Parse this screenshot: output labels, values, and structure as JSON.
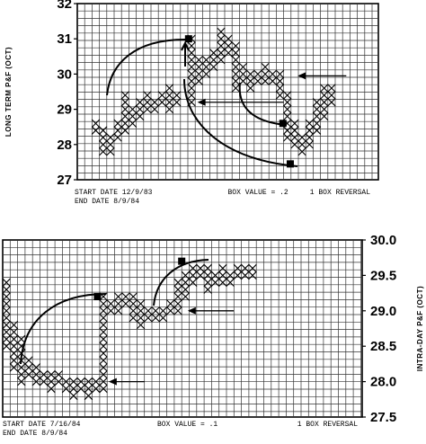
{
  "chart_data": [
    {
      "type": "point-and-figure",
      "ylabel": "LONG TERM P&F (OCT)",
      "ylim": [
        27,
        32
      ],
      "yticks": [
        "27",
        "28",
        "29",
        "30",
        "31",
        "32"
      ],
      "box_value": 0.2,
      "reversal": 1,
      "footer": {
        "start": "START DATE 12/9/83",
        "end": "END DATE 8/9/84",
        "box": "BOX VALUE = .2",
        "reversal": "1 BOX REVERSAL"
      },
      "columns": [
        {
          "col": 2,
          "low": 28.4,
          "high": 28.6
        },
        {
          "col": 3,
          "low": 27.8,
          "high": 28.4
        },
        {
          "col": 4,
          "low": 27.8,
          "high": 28.2
        },
        {
          "col": 5,
          "low": 28.2,
          "high": 28.6
        },
        {
          "col": 6,
          "low": 28.4,
          "high": 29.4
        },
        {
          "col": 7,
          "low": 28.6,
          "high": 29.0
        },
        {
          "col": 8,
          "low": 28.8,
          "high": 29.2
        },
        {
          "col": 9,
          "low": 29.0,
          "high": 29.4
        },
        {
          "col": 10,
          "low": 29.0,
          "high": 29.2
        },
        {
          "col": 11,
          "low": 29.2,
          "high": 29.4
        },
        {
          "col": 12,
          "low": 29.0,
          "high": 29.6
        },
        {
          "col": 13,
          "low": 29.2,
          "high": 29.4
        },
        {
          "col": 15,
          "low": 29.2,
          "high": 31.0
        },
        {
          "col": 16,
          "low": 29.8,
          "high": 30.4
        },
        {
          "col": 17,
          "low": 30.0,
          "high": 30.4
        },
        {
          "col": 18,
          "low": 30.2,
          "high": 30.6
        },
        {
          "col": 19,
          "low": 30.4,
          "high": 31.2
        },
        {
          "col": 20,
          "low": 30.6,
          "high": 31.0
        },
        {
          "col": 21,
          "low": 29.6,
          "high": 30.8
        },
        {
          "col": 22,
          "low": 29.8,
          "high": 30.2
        },
        {
          "col": 23,
          "low": 29.6,
          "high": 30.0
        },
        {
          "col": 24,
          "low": 29.8,
          "high": 30.0
        },
        {
          "col": 25,
          "low": 29.8,
          "high": 30.2
        },
        {
          "col": 26,
          "low": 29.8,
          "high": 30.0
        },
        {
          "col": 27,
          "low": 29.4,
          "high": 30.0
        },
        {
          "col": 28,
          "low": 28.2,
          "high": 29.4
        },
        {
          "col": 29,
          "low": 28.0,
          "high": 28.6
        },
        {
          "col": 30,
          "low": 27.8,
          "high": 28.2
        },
        {
          "col": 31,
          "low": 28.0,
          "high": 28.6
        },
        {
          "col": 32,
          "low": 28.4,
          "high": 29.2
        },
        {
          "col": 33,
          "low": 28.8,
          "high": 29.6
        },
        {
          "col": 34,
          "low": 29.2,
          "high": 29.6
        }
      ],
      "markers": [
        {
          "col": 14.6,
          "y": 31.0
        },
        {
          "col": 27.4,
          "y": 28.6
        },
        {
          "col": 28.4,
          "y": 27.45
        }
      ],
      "arrows": [
        {
          "x1": 27.5,
          "y1": 29.2,
          "x2": 15.8,
          "y2": 29.2
        },
        {
          "x1": 36.0,
          "y1": 29.95,
          "x2": 29.4,
          "y2": 29.95
        }
      ]
    },
    {
      "type": "point-and-figure",
      "ylabel": "INTRA-DAY P&F (OCT)",
      "ylim": [
        27.5,
        30.0
      ],
      "yticks": [
        "27.5",
        "28.0",
        "28.5",
        "29.0",
        "29.5",
        "30.0"
      ],
      "box_value": 0.1,
      "reversal": 1,
      "footer": {
        "start": "START DATE 7/16/84",
        "end": "END DATE 8/9/84",
        "box": "BOX VALUE = .1",
        "reversal": "1 BOX REVERSAL"
      },
      "columns": [
        {
          "col": 0,
          "low": 28.5,
          "high": 29.4
        },
        {
          "col": 1,
          "low": 28.2,
          "high": 28.8
        },
        {
          "col": 2,
          "low": 28.0,
          "high": 28.6
        },
        {
          "col": 3,
          "low": 28.1,
          "high": 28.3
        },
        {
          "col": 4,
          "low": 28.0,
          "high": 28.2
        },
        {
          "col": 5,
          "low": 28.0,
          "high": 28.1
        },
        {
          "col": 6,
          "low": 27.9,
          "high": 28.1
        },
        {
          "col": 7,
          "low": 28.0,
          "high": 28.1
        },
        {
          "col": 8,
          "low": 27.9,
          "high": 28.0
        },
        {
          "col": 9,
          "low": 27.8,
          "high": 28.0
        },
        {
          "col": 10,
          "low": 27.9,
          "high": 28.0
        },
        {
          "col": 11,
          "low": 27.8,
          "high": 28.0
        },
        {
          "col": 12,
          "low": 27.9,
          "high": 28.0
        },
        {
          "col": 13,
          "low": 27.9,
          "high": 29.2
        },
        {
          "col": 14,
          "low": 29.0,
          "high": 29.1
        },
        {
          "col": 15,
          "low": 29.0,
          "high": 29.2
        },
        {
          "col": 16,
          "low": 29.1,
          "high": 29.2
        },
        {
          "col": 17,
          "low": 28.9,
          "high": 29.2
        },
        {
          "col": 18,
          "low": 28.8,
          "high": 29.1
        },
        {
          "col": 19,
          "low": 28.9,
          "high": 29.0
        },
        {
          "col": 20,
          "low": 28.9,
          "high": 29.0
        },
        {
          "col": 21,
          "low": 28.9,
          "high": 29.0
        },
        {
          "col": 22,
          "low": 29.0,
          "high": 29.1
        },
        {
          "col": 23,
          "low": 29.0,
          "high": 29.4
        },
        {
          "col": 24,
          "low": 29.2,
          "high": 29.5
        },
        {
          "col": 25,
          "low": 29.4,
          "high": 29.6
        },
        {
          "col": 26,
          "low": 29.5,
          "high": 29.6
        },
        {
          "col": 27,
          "low": 29.3,
          "high": 29.6
        },
        {
          "col": 28,
          "low": 29.4,
          "high": 29.5
        },
        {
          "col": 29,
          "low": 29.4,
          "high": 29.6
        },
        {
          "col": 30,
          "low": 29.4,
          "high": 29.5
        },
        {
          "col": 31,
          "low": 29.5,
          "high": 29.6
        },
        {
          "col": 32,
          "low": 29.5,
          "high": 29.6
        },
        {
          "col": 33,
          "low": 29.5,
          "high": 29.6
        }
      ],
      "markers": [
        {
          "col": 12.2,
          "y": 29.2
        },
        {
          "col": 23.5,
          "y": 29.7
        }
      ],
      "arrows": [
        {
          "x1": 18.5,
          "y1": 28.0,
          "x2": 13.7,
          "y2": 28.0
        },
        {
          "x1": 30.5,
          "y1": 29.0,
          "x2": 24.3,
          "y2": 29.0
        }
      ]
    }
  ]
}
